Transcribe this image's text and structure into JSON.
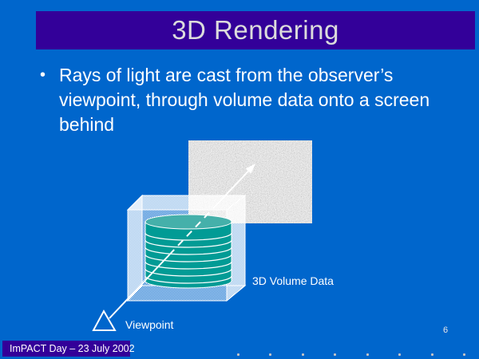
{
  "slide": {
    "title": "3D Rendering",
    "bullet_char": "•",
    "bullet": "Rays of light are cast from the observer’s viewpoint, through volume data onto a screen behind",
    "footer": "ImPACT Day – 23 July 2002",
    "page_number": "6"
  },
  "diagram": {
    "labels": {
      "volume": "3D Volume Data",
      "viewpoint": "Viewpoint"
    },
    "icons": {
      "screen": "noise-texture-screen",
      "cube": "wireframe-volume-cube-icon",
      "cylinder": "volume-cylinder",
      "ray": "cast-ray-arrow-icon",
      "viewpoint": "viewpoint-eye-triangle-icon"
    }
  },
  "colors": {
    "background": "#0066CC",
    "title_bar": "#330099",
    "footer_bar": "#330099",
    "title_text": "#DCDCDC",
    "body_text": "#FFFFFF",
    "cylinder_body": "#019B95",
    "cylinder_top": "#45B0AA",
    "wireframe": "#FFFFFF",
    "dot_gray": "#C4C4C4"
  },
  "footer_dots": {
    "count": 8
  }
}
